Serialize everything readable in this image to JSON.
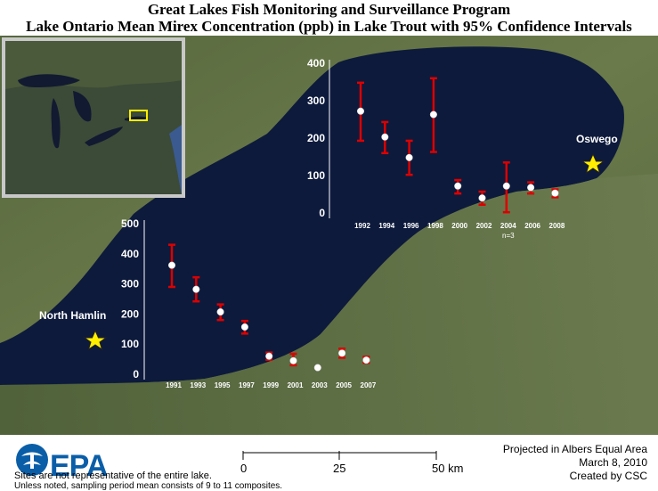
{
  "title_line1": "Great Lakes Fish Monitoring and Surveillance Program",
  "title_line2": "Lake Ontario Mean Mirex Concentration (ppb) in Lake Trout with 95% Confidence Intervals",
  "sites": {
    "west": "North Hamlin",
    "east": "Oswego"
  },
  "colors": {
    "error_bar": "#dd0000",
    "marker": "#ffffff",
    "star": "#ffee00",
    "water": "#0d1a3c"
  },
  "chart_data": [
    {
      "type": "scatter",
      "site": "Oswego",
      "categories": [
        "1992",
        "1994",
        "1996",
        "1998",
        "2000",
        "2002",
        "2004",
        "2006",
        "2008"
      ],
      "values": [
        272,
        203,
        148,
        263,
        72,
        40,
        72,
        68,
        53
      ],
      "lower": [
        193,
        160,
        102,
        163,
        52,
        22,
        2,
        52,
        42
      ],
      "upper": [
        348,
        243,
        193,
        360,
        88,
        57,
        135,
        82,
        63
      ],
      "ylim": [
        0,
        400
      ],
      "yticks": [
        0,
        100,
        200,
        300,
        400
      ],
      "annotations": [
        {
          "category": "2004",
          "text": "n=3"
        }
      ],
      "grid": false
    },
    {
      "type": "scatter",
      "site": "North Hamlin",
      "categories": [
        "1991",
        "1993",
        "1995",
        "1997",
        "1999",
        "2001",
        "2003",
        "2005",
        "2007"
      ],
      "values": [
        362,
        282,
        207,
        157,
        60,
        45,
        22,
        70,
        47
      ],
      "lower": [
        290,
        242,
        180,
        135,
        48,
        30,
        22,
        55,
        38
      ],
      "upper": [
        430,
        322,
        232,
        177,
        72,
        68,
        22,
        85,
        58
      ],
      "ylim": [
        0,
        500
      ],
      "yticks": [
        0,
        100,
        200,
        300,
        400,
        500
      ],
      "annotations": [],
      "grid": false
    }
  ],
  "scale_bar": {
    "labels": [
      "0",
      "25",
      "50 km"
    ]
  },
  "logo": {
    "text": "EPA"
  },
  "footer": {
    "note1": "Sites are not representative of the entire lake.",
    "note2": "Unless noted, sampling period mean consists of 9 to 11 composites.",
    "projection": "Projected in Albers Equal Area",
    "date": "March 8, 2010",
    "credit": "Created by CSC"
  }
}
